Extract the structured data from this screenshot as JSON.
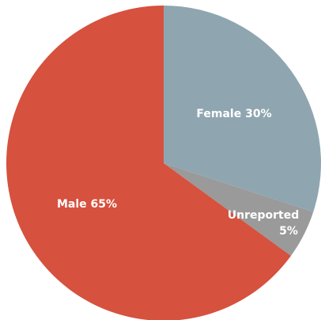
{
  "chart_data": {
    "type": "pie",
    "title": "",
    "slices": [
      {
        "label": "Female 30%",
        "value": 30,
        "color": "#8fa6b0"
      },
      {
        "label": "Unreported",
        "label_line2": "5%",
        "value": 5,
        "color": "#9a9a9a"
      },
      {
        "label": "Male 65%",
        "value": 65,
        "color": "#d6513e"
      }
    ],
    "legend": "none",
    "start_angle": "12 o'clock",
    "direction": "clockwise"
  }
}
